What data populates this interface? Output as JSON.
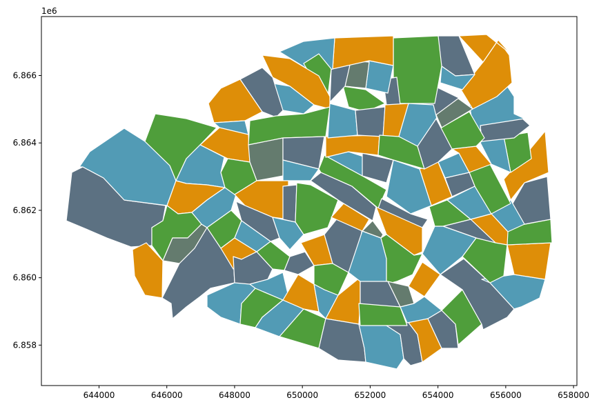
{
  "palette": {
    "blue": "#529bb5",
    "slate": "#5c7182",
    "orange": "#de8e08",
    "green": "#4f9e3b",
    "olive": "#647b6e"
  },
  "chart_data": {
    "type": "choropleth",
    "title": "",
    "xlabel": "",
    "ylabel": "",
    "y_offset_label": "1e6",
    "xlim": [
      642300,
      658100
    ],
    "ylim": [
      6856800,
      6867750
    ],
    "x_ticks": [
      644000,
      646000,
      648000,
      650000,
      652000,
      654000,
      656000,
      658000
    ],
    "x_tick_labels": [
      "644000",
      "646000",
      "648000",
      "650000",
      "652000",
      "654000",
      "656000",
      "658000"
    ],
    "y_ticks": [
      6858000,
      6860000,
      6862000,
      6864000,
      6866000
    ],
    "y_tick_labels": [
      "6.858",
      "6.860",
      "6.862",
      "6.864",
      "6.866"
    ],
    "grid": false,
    "legend": "none"
  }
}
